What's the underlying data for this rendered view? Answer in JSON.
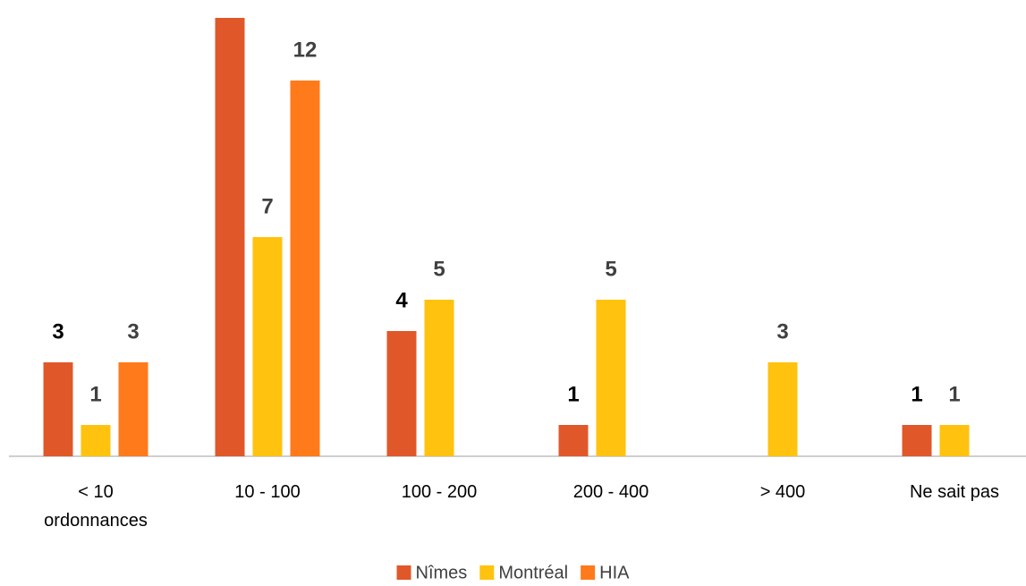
{
  "chart_data": {
    "type": "bar",
    "categories": [
      "< 10 ordonnances",
      "10 - 100",
      "100 - 200",
      "200 - 400",
      "> 400",
      "Ne sait pas"
    ],
    "series": [
      {
        "name": "Nîmes",
        "color": "#e0582a",
        "label_color": "#000000",
        "values": [
          3,
          14,
          4,
          1,
          null,
          1
        ]
      },
      {
        "name": "Montréal",
        "color": "#ffc20e",
        "label_color": "#404040",
        "values": [
          1,
          7,
          5,
          5,
          3,
          1
        ]
      },
      {
        "name": "HIA",
        "color": "#ff7a1a",
        "label_color": "#404040",
        "values": [
          3,
          12,
          null,
          null,
          null,
          null
        ]
      }
    ],
    "ylim": [
      0,
      14
    ],
    "legend": "bottom"
  }
}
